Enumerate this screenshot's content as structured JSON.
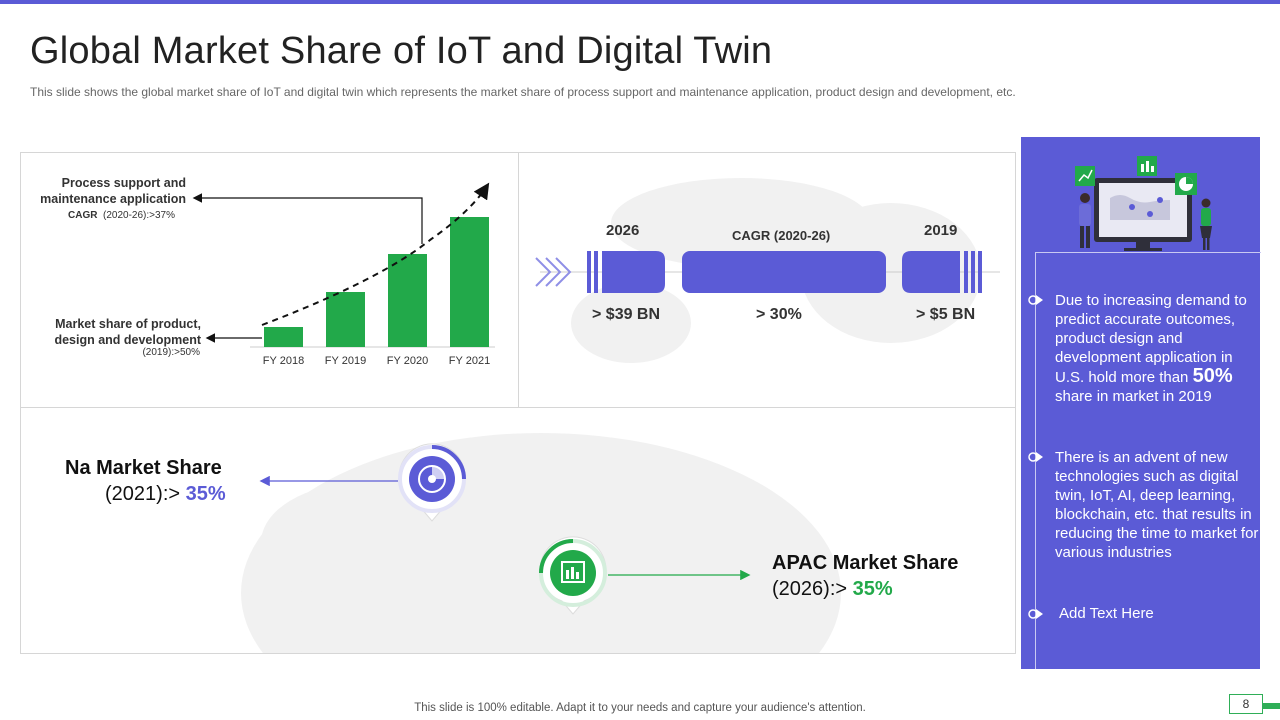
{
  "slide": {
    "title": "Global Market Share of IoT and Digital Twin",
    "subtitle": "This slide shows the global market share of IoT and digital twin which represents the market share of process support and maintenance application, product design and development,  etc.",
    "footer": "This slide is 100% editable. Adapt it to your needs and capture your audience's attention.",
    "page_number": "8"
  },
  "colors": {
    "accent": "#5b5bd6",
    "green": "#22a94a",
    "text": "#333333"
  },
  "chart_data": {
    "type": "bar",
    "categories": [
      "FY 2018",
      "FY 2019",
      "FY 2020",
      "FY 2021"
    ],
    "values": [
      20,
      55,
      93,
      130
    ],
    "ylim": [
      0,
      140
    ],
    "title": "",
    "xlabel": "",
    "ylabel": "",
    "grid": false,
    "trend_arrow": true
  },
  "chart_labels": {
    "top_label_line1": "Process support and",
    "top_label_line2": "maintenance application",
    "top_cagr_key": "CAGR",
    "top_cagr_val": "(2020-26):>37%",
    "bottom_label_line1": "Market share of product,",
    "bottom_label_line2": "design and development",
    "bottom_val": "(2019):>50%"
  },
  "timeline": {
    "left_year": "2026",
    "left_value": "> $39 BN",
    "mid_label": "CAGR (2020-26)",
    "mid_value": "> 30%",
    "right_year": "2019",
    "right_value": "> $5 BN"
  },
  "regions": {
    "na_title": "Na Market Share",
    "na_year": "(2021):>",
    "na_value": "35%",
    "apac_title": "APAC Market Share",
    "apac_year": "(2026):>",
    "apac_value": "35%"
  },
  "right_panel": {
    "bullet1_part1": "Due to increasing demand to predict accurate outcomes, product design and development application in U.S. hold more than",
    "bullet1_big": "50%",
    "bullet1_part2": "share in market in 2019",
    "bullet2": "There is an advent of new technologies such as digital twin, IoT, AI, deep learning, blockchain, etc. that results in reducing the time to market for various industries",
    "bullet3": "Add Text Here"
  }
}
